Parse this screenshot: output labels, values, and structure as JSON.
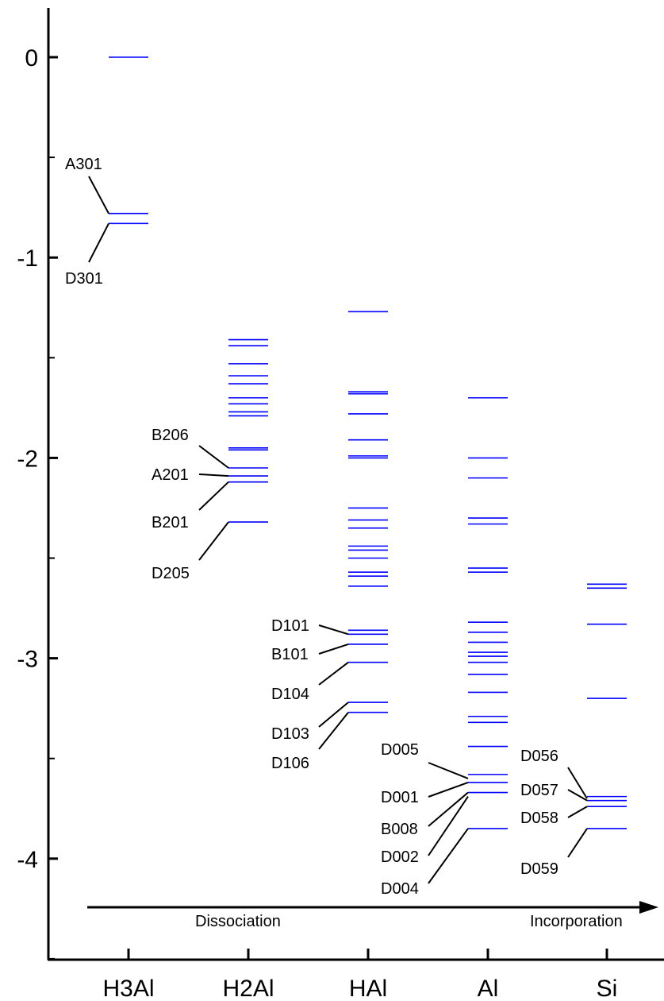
{
  "chart_data": {
    "type": "level-diagram",
    "title": "",
    "xlabel": "",
    "ylabel": "",
    "ylim": [
      -4.5,
      0.25
    ],
    "yticks": [
      0,
      -1,
      -2,
      -3,
      -4
    ],
    "ytick_labels": [
      "0",
      "-1",
      "-2",
      "-3",
      "-4"
    ],
    "grid": false,
    "level_color": "#0000ff",
    "categories": [
      "H3Al",
      "H2Al",
      "HAl",
      "Al",
      "Si"
    ],
    "levels": [
      [
        0.0,
        -0.78,
        -0.83
      ],
      [
        -1.41,
        -1.44,
        -1.53,
        -1.59,
        -1.63,
        -1.7,
        -1.73,
        -1.77,
        -1.79,
        -1.95,
        -1.96,
        -2.05,
        -2.09,
        -2.12,
        -2.32
      ],
      [
        -1.27,
        -1.67,
        -1.68,
        -1.78,
        -1.91,
        -1.99,
        -2.0,
        -2.25,
        -2.31,
        -2.35,
        -2.44,
        -2.46,
        -2.5,
        -2.57,
        -2.59,
        -2.64,
        -2.86,
        -2.88,
        -2.93,
        -3.02,
        -3.22,
        -3.27
      ],
      [
        -1.7,
        -2.0,
        -2.1,
        -2.3,
        -2.33,
        -2.55,
        -2.57,
        -2.82,
        -2.87,
        -2.92,
        -2.97,
        -2.99,
        -3.02,
        -3.08,
        -3.17,
        -3.29,
        -3.32,
        -3.44,
        -3.58,
        -3.62,
        -3.67,
        -3.85
      ],
      [
        -2.63,
        -2.65,
        -2.83,
        -3.2,
        -3.69,
        -3.71,
        -3.74,
        -3.85
      ]
    ],
    "annotations": [
      {
        "category": "H3Al",
        "text": "A301",
        "target": -0.78
      },
      {
        "category": "H3Al",
        "text": "D301",
        "target": -0.83
      },
      {
        "category": "H2Al",
        "text": "B206",
        "target": -2.05
      },
      {
        "category": "H2Al",
        "text": "A201",
        "target": -2.09
      },
      {
        "category": "H2Al",
        "text": "B201",
        "target": -2.12
      },
      {
        "category": "H2Al",
        "text": "D205",
        "target": -2.32
      },
      {
        "category": "HAl",
        "text": "D101",
        "target": -2.88
      },
      {
        "category": "HAl",
        "text": "B101",
        "target": -2.93
      },
      {
        "category": "HAl",
        "text": "D104",
        "target": -3.02
      },
      {
        "category": "HAl",
        "text": "D103",
        "target": -3.22
      },
      {
        "category": "HAl",
        "text": "D106",
        "target": -3.27
      },
      {
        "category": "Al",
        "text": "D005",
        "target": -3.6
      },
      {
        "category": "Al",
        "text": "D001",
        "target": -3.62
      },
      {
        "category": "Al",
        "text": "B008",
        "target": -3.67
      },
      {
        "category": "Al",
        "text": "D002",
        "target": -3.69
      },
      {
        "category": "Al",
        "text": "D004",
        "target": -3.85
      },
      {
        "category": "Si",
        "text": "D056",
        "target": -3.7
      },
      {
        "category": "Si",
        "text": "D057",
        "target": -3.71
      },
      {
        "category": "Si",
        "text": "D058",
        "target": -3.74
      },
      {
        "category": "Si",
        "text": "D059",
        "target": -3.85
      }
    ],
    "arrow": {
      "left_label": "Dissociation",
      "right_label": "Incorporation"
    }
  }
}
